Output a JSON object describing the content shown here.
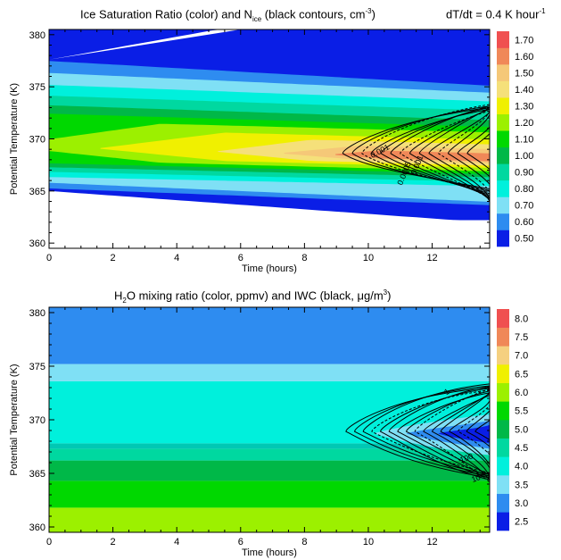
{
  "chart_data": [
    {
      "type": "heatmap",
      "title_parts": {
        "a": "Ice Saturation Ratio (color) and N",
        "sub": "ice",
        "b": " (black contours, cm",
        "sup": "-3",
        "c": ")"
      },
      "annotation_parts": {
        "a": "dT/dt = 0.4 K hour",
        "sup": "-1"
      },
      "xlabel": "Time (hours)",
      "ylabel": "Potential Temperature (K)",
      "xlim": [
        0,
        13.8
      ],
      "ylim": [
        359.5,
        380.5
      ],
      "xticks": [
        0,
        2,
        4,
        6,
        8,
        10,
        12
      ],
      "yticks": [
        360,
        365,
        370,
        375,
        380
      ],
      "colorbar": {
        "levels": [
          "0.50",
          "0.60",
          "0.70",
          "0.80",
          "0.90",
          "1.00",
          "1.10",
          "1.20",
          "1.30",
          "1.40",
          "1.50",
          "1.60",
          "1.70"
        ],
        "colors": [
          "#0a1ee6",
          "#2e8cf0",
          "#7fe0f5",
          "#00f0dc",
          "#00d8a0",
          "#00b848",
          "#00d800",
          "#9cf000",
          "#f0f000",
          "#f5e07a",
          "#f5c878",
          "#f08858",
          "#f05050"
        ]
      },
      "contour_labels": [
        "0.001",
        "0.0005",
        "0.001"
      ]
    },
    {
      "type": "heatmap",
      "title_parts": {
        "a": "H",
        "sub": "2",
        "b": "O mixing ratio (color, ppmv) and IWC (black, ",
        "mu": "μ",
        "c": "g/m",
        "sup": "3",
        "d": ")"
      },
      "xlabel": "Time (hours)",
      "ylabel": "Potential Temperature (K)",
      "xlim": [
        0,
        13.8
      ],
      "ylim": [
        359.5,
        380.5
      ],
      "xticks": [
        0,
        2,
        4,
        6,
        8,
        10,
        12
      ],
      "yticks": [
        360,
        365,
        370,
        375,
        380
      ],
      "colorbar": {
        "levels": [
          "2.5",
          "3.0",
          "3.5",
          "4.0",
          "4.5",
          "5.0",
          "5.5",
          "6.0",
          "6.5",
          "7.0",
          "7.5",
          "8.0"
        ],
        "colors": [
          "#0a1ee6",
          "#2e8cf0",
          "#7fe0f5",
          "#00f0dc",
          "#00d8a0",
          "#00b848",
          "#00d800",
          "#9cf000",
          "#f0f000",
          "#f5d080",
          "#f08858",
          "#f05050"
        ]
      },
      "bands": [
        {
          "y0": 359.5,
          "y1": 361.8,
          "value": "6.0"
        },
        {
          "y0": 361.8,
          "y1": 364.3,
          "value": "5.5"
        },
        {
          "y0": 364.3,
          "y1": 366.2,
          "value": "5.0"
        },
        {
          "y0": 366.2,
          "y1": 367.3,
          "value": "4.5"
        },
        {
          "y0": 367.3,
          "y1": 367.8,
          "value": "4.0"
        },
        {
          "y0": 367.8,
          "y1": 373.6,
          "value": "4.0"
        },
        {
          "y0": 373.6,
          "y1": 375.2,
          "value": "3.5"
        },
        {
          "y0": 375.2,
          "y1": 380.5,
          "value": "3.0"
        }
      ],
      "contour_labels": [
        "1",
        "100",
        "10"
      ]
    }
  ]
}
